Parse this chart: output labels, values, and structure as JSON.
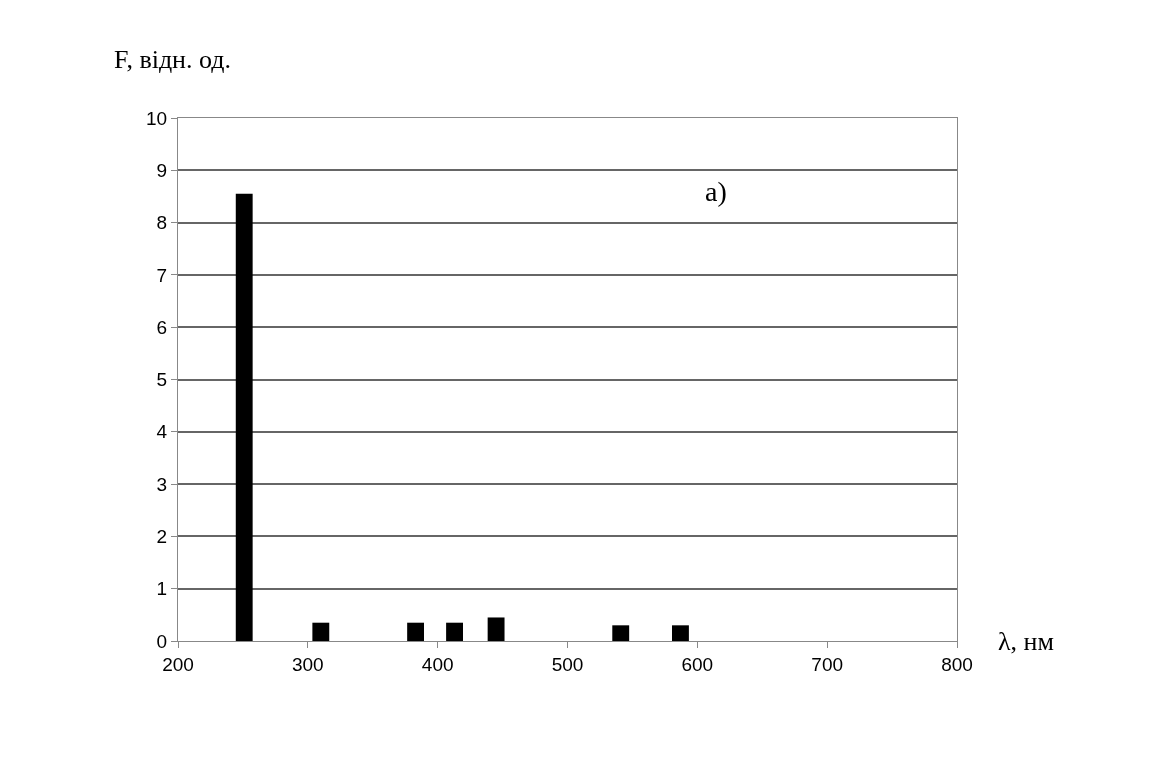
{
  "chart_data": {
    "type": "bar",
    "ylabel": "F, відн. од.",
    "xlabel": "λ, нм",
    "annotations": [
      "a)"
    ],
    "x": [
      251,
      310,
      383,
      413,
      445,
      541,
      587
    ],
    "values": [
      8.55,
      0.35,
      0.35,
      0.35,
      0.45,
      0.3,
      0.3
    ],
    "color": "#000000",
    "xlim": [
      200,
      800
    ],
    "xticks": [
      200,
      300,
      400,
      500,
      600,
      700,
      800
    ],
    "ylim": [
      0,
      10
    ],
    "yticks": [
      0,
      1,
      2,
      3,
      4,
      5,
      6,
      7,
      8,
      9,
      10
    ],
    "grid": "y",
    "legend": false
  }
}
